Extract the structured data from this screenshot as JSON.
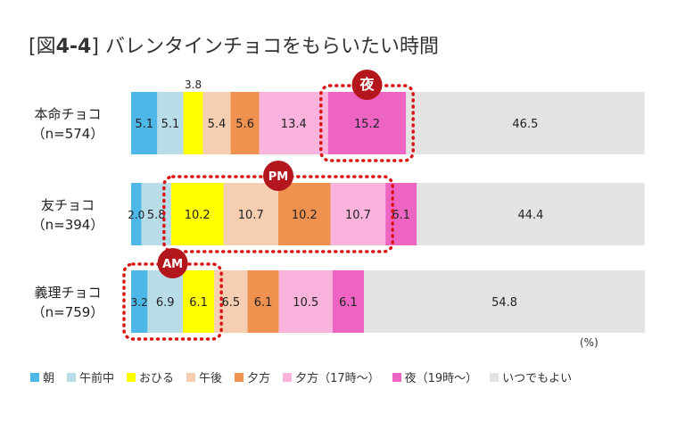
{
  "title": {
    "bracket_open": "[",
    "fig_prefix": "図",
    "fig_number": "4-4",
    "bracket_close": "]",
    "text": "バレンタインチョコをもらいたい時間"
  },
  "unit_label": "(%)",
  "colors": {
    "朝": "#4db8e8",
    "午前中": "#b8dce8",
    "おひる": "#ffff00",
    "午後": "#f6cfb2",
    "夕方": "#ef9250",
    "夕方（17時〜）": "#f9b3dc",
    "夜（19時〜）": "#ee64c2",
    "いつでもよい": "#e3e3e3"
  },
  "callouts": [
    {
      "label": "夜",
      "row": 0,
      "segments": [
        6,
        6
      ]
    },
    {
      "label": "PM",
      "row": 1,
      "segments": [
        2,
        5
      ]
    },
    {
      "label": "AM",
      "row": 2,
      "segments": [
        0,
        2
      ]
    }
  ],
  "chart_data": {
    "type": "bar",
    "orientation": "horizontal",
    "stacked": true,
    "percent_stacked": true,
    "categories": [
      [
        "本命チョコ",
        "（n=574）"
      ],
      [
        "友チョコ",
        "（n=394）"
      ],
      [
        "義理チョコ",
        "（n=759）"
      ]
    ],
    "series": [
      {
        "name": "朝",
        "values": [
          5.1,
          2.0,
          3.2
        ],
        "labels": [
          "5.1",
          "2.0",
          "3.2"
        ]
      },
      {
        "name": "午前中",
        "values": [
          5.1,
          5.8,
          6.9
        ],
        "labels": [
          "5.1",
          "5.8",
          "6.9"
        ]
      },
      {
        "name": "おひる",
        "values": [
          3.8,
          10.2,
          6.1
        ],
        "labels": [
          "3.8",
          "10.2",
          "6.1"
        ]
      },
      {
        "name": "午後",
        "values": [
          5.4,
          10.7,
          6.5
        ],
        "labels": [
          "5.4",
          "10.7",
          "6.5"
        ]
      },
      {
        "name": "夕方",
        "values": [
          5.6,
          10.2,
          6.1
        ],
        "labels": [
          "5.6",
          "10.2",
          "6.1"
        ]
      },
      {
        "name": "夕方（17時〜）",
        "values": [
          13.4,
          10.7,
          10.5
        ],
        "labels": [
          "13.4",
          "10.7",
          "10.5"
        ]
      },
      {
        "name": "夜（19時〜）",
        "values": [
          15.2,
          6.1,
          6.1
        ],
        "labels": [
          "15.2",
          "6.1",
          "6.1"
        ]
      },
      {
        "name": "いつでもよい",
        "values": [
          46.5,
          44.4,
          54.8
        ],
        "labels": [
          "46.5",
          "44.4",
          "54.8"
        ]
      }
    ],
    "xlim": [
      0,
      100
    ],
    "grid": false,
    "legend_position": "bottom"
  }
}
